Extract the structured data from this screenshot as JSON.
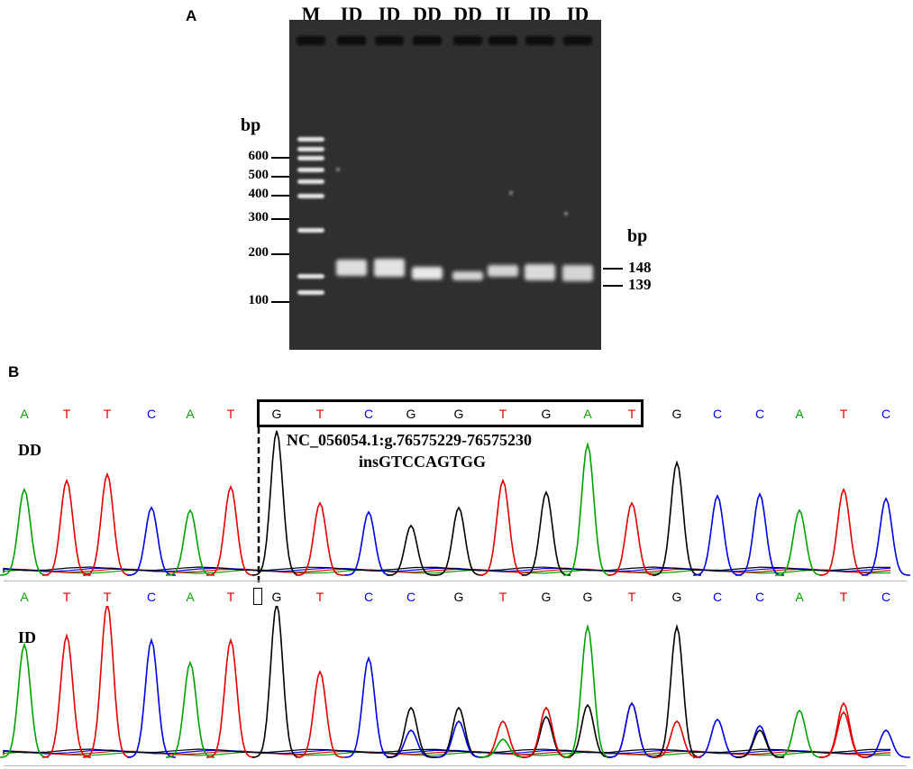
{
  "panel_a": {
    "label": "A",
    "lanes": [
      "M",
      "ID",
      "ID",
      "DD",
      "DD",
      "II",
      "ID",
      "ID"
    ],
    "ladder_unit": "bp",
    "ladder": [
      "600",
      "500",
      "400",
      "300",
      "200",
      "100"
    ],
    "right_unit": "bp",
    "right_bands": [
      "148",
      "139"
    ]
  },
  "panel_b": {
    "label": "B",
    "top": {
      "genotype": "DD",
      "bases": [
        "A",
        "T",
        "T",
        "C",
        "A",
        "T",
        "G",
        "T",
        "C",
        "G",
        "G",
        "T",
        "G",
        "A",
        "T",
        "G",
        "C",
        "C",
        "A",
        "T",
        "C"
      ],
      "annotation_line1": "NC_056054.1:g.76575229-76575230",
      "annotation_line2": "insGTCCAGTGG"
    },
    "bottom": {
      "genotype": "ID",
      "bases": [
        "A",
        "T",
        "T",
        "C",
        "A",
        "T",
        "G",
        "T",
        "C",
        "C",
        "G",
        "T",
        "G",
        "G",
        "T",
        "G",
        "C",
        "C",
        "A",
        "T",
        "C"
      ]
    }
  },
  "colors": {
    "A": "#00a000",
    "T": "#e00000",
    "C": "#0000e0",
    "G": "#000000"
  }
}
